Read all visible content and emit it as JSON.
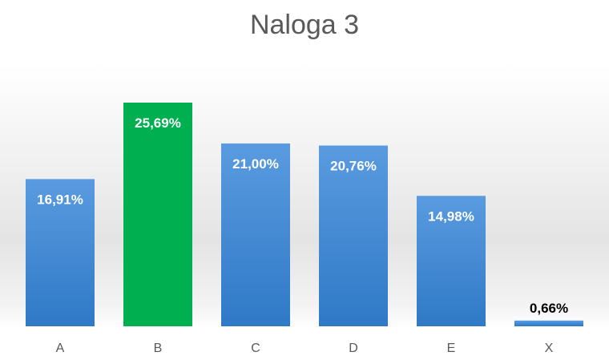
{
  "chart_data": {
    "type": "bar",
    "title": "Naloga 3",
    "xlabel": "",
    "ylabel": "",
    "categories": [
      "A",
      "B",
      "C",
      "D",
      "E",
      "X"
    ],
    "series": [
      {
        "values": [
          16.91,
          25.69,
          21.0,
          20.76,
          14.98,
          0.66
        ],
        "labels": [
          "16,91%",
          "25,69%",
          "21,00%",
          "20,76%",
          "14,98%",
          "0,66%"
        ]
      }
    ],
    "highlight_index": 1,
    "colors": {
      "default": "#3f86cf",
      "highlight": "#00b050",
      "label_inside": "#ffffff",
      "label_outside": "#000000"
    },
    "ylim": [
      0,
      26
    ],
    "grid": false,
    "legend": "none"
  }
}
